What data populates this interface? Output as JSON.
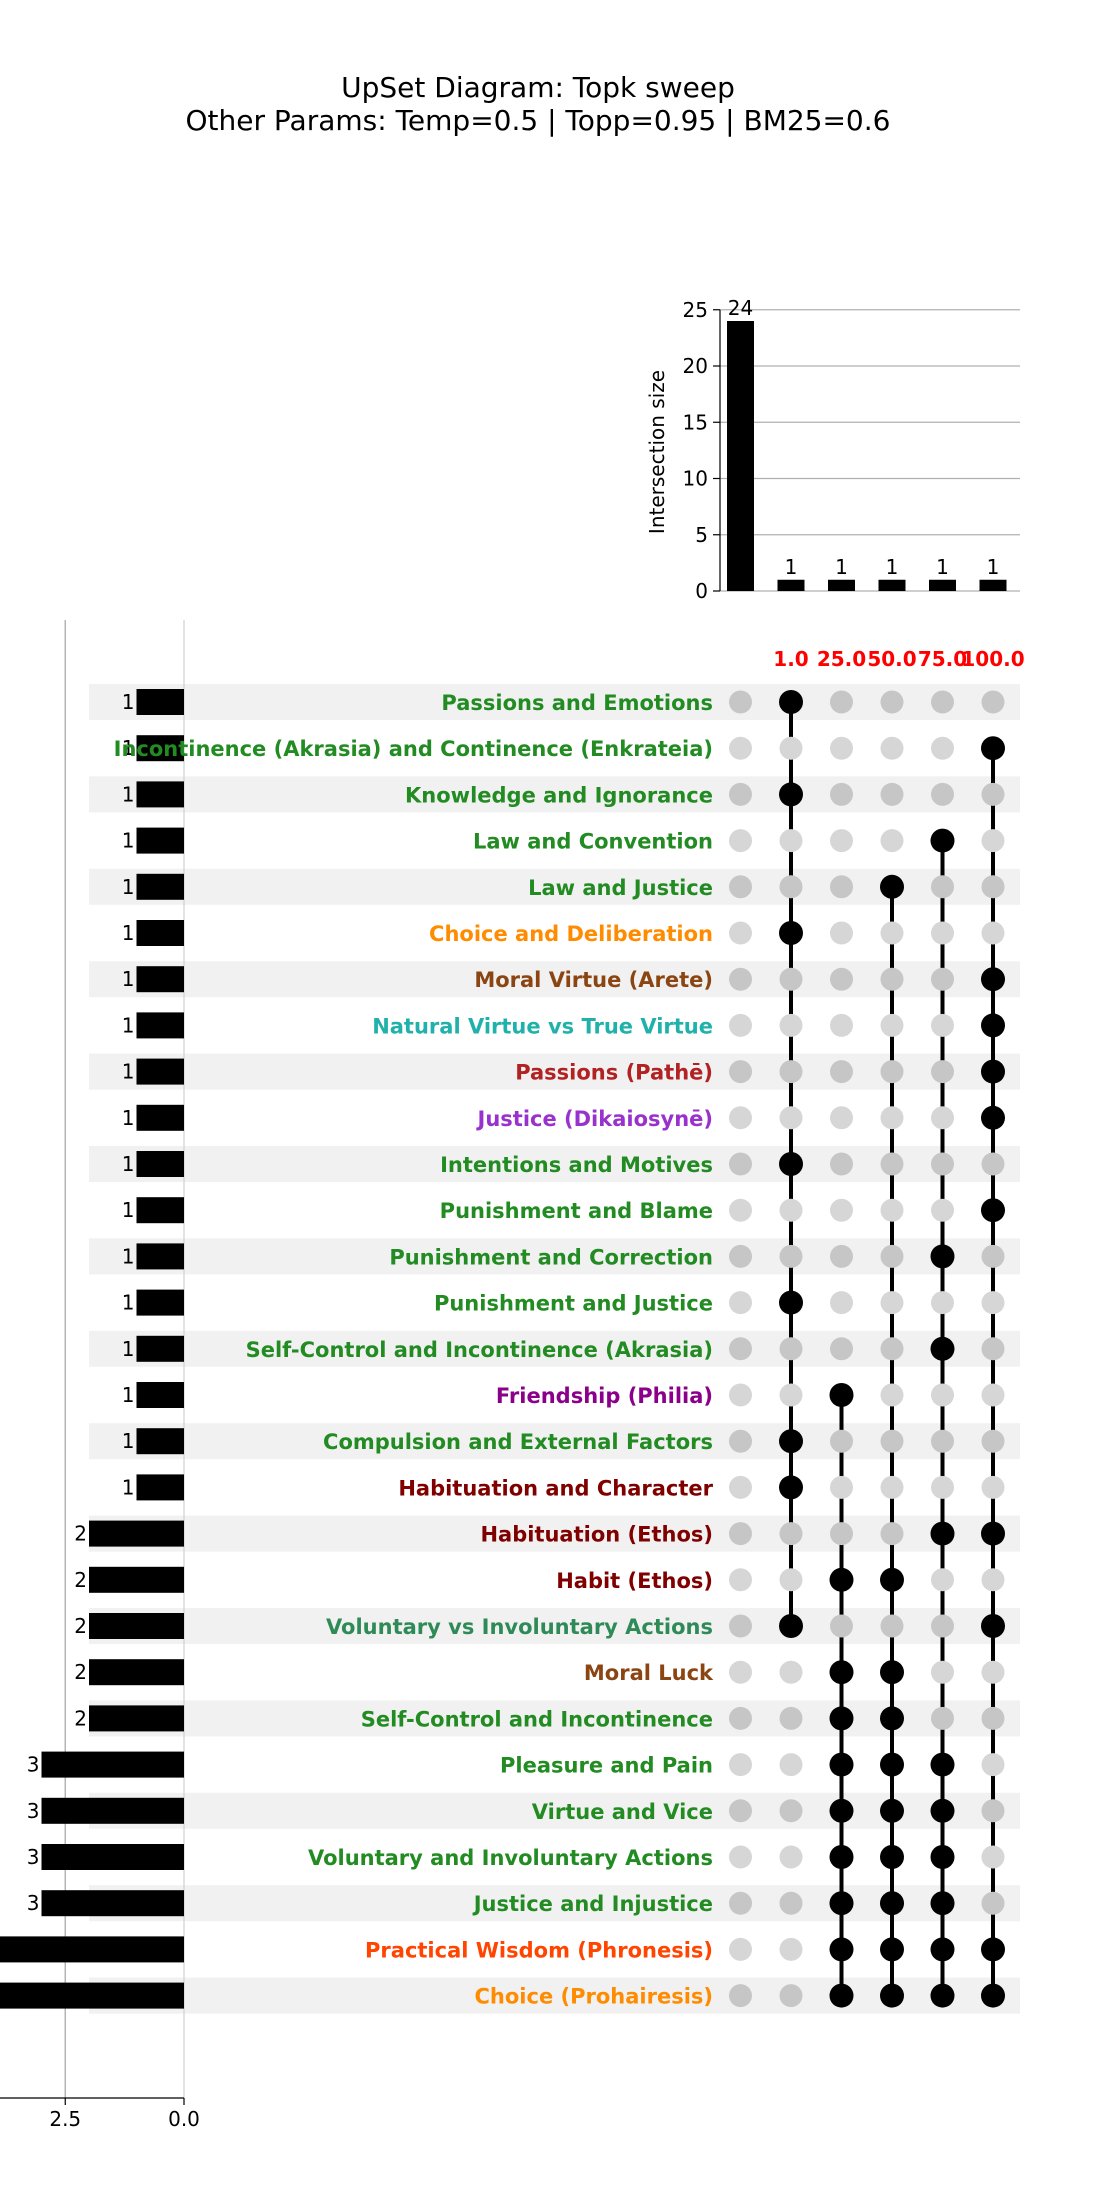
{
  "chart_data": {
    "type": "upset",
    "title_line1": "UpSet Diagram: Topk sweep",
    "title_line2": "Other Params: Temp=0.5 | Topp=0.95 | BM25=0.6",
    "intersection_ylabel": "Intersection size",
    "intersection_ylim": [
      0,
      25
    ],
    "intersection_yticks": [
      "0",
      "5",
      "10",
      "15",
      "20",
      "25"
    ],
    "set_size_xticks": [
      "2.5",
      "0.0"
    ],
    "set_size_xlim": [
      0,
      4
    ],
    "grid": true,
    "columns": [
      "1.0",
      "25.0",
      "50.0",
      "75.0",
      "100.0"
    ],
    "column_color": "#ff0000",
    "intersections": [
      {
        "size": 24,
        "members": []
      },
      {
        "size": 1,
        "members": [
          "1.0"
        ]
      },
      {
        "size": 1,
        "members": [
          "25.0"
        ]
      },
      {
        "size": 1,
        "members": [
          "50.0"
        ]
      },
      {
        "size": 1,
        "members": [
          "75.0"
        ]
      },
      {
        "size": 1,
        "members": [
          "100.0"
        ]
      }
    ],
    "rows": [
      {
        "label": "Passions and Emotions",
        "color": "#228b22",
        "size": 1,
        "dots": [
          0,
          1,
          0,
          0,
          0,
          0
        ]
      },
      {
        "label": "Incontinence (Akrasia) and Continence (Enkrateia)",
        "color": "#228b22",
        "size": 1,
        "dots": [
          0,
          0,
          0,
          0,
          0,
          1
        ]
      },
      {
        "label": "Knowledge and Ignorance",
        "color": "#228b22",
        "size": 1,
        "dots": [
          0,
          1,
          0,
          0,
          0,
          0
        ]
      },
      {
        "label": "Law and Convention",
        "color": "#228b22",
        "size": 1,
        "dots": [
          0,
          0,
          0,
          0,
          1,
          0
        ]
      },
      {
        "label": "Law and Justice",
        "color": "#228b22",
        "size": 1,
        "dots": [
          0,
          0,
          0,
          1,
          0,
          0
        ]
      },
      {
        "label": "Choice and Deliberation",
        "color": "#ff8c00",
        "size": 1,
        "dots": [
          0,
          1,
          0,
          0,
          0,
          0
        ]
      },
      {
        "label": "Moral Virtue (Arete)",
        "color": "#8b4513",
        "size": 1,
        "dots": [
          0,
          0,
          0,
          0,
          0,
          1
        ]
      },
      {
        "label": "Natural Virtue vs True Virtue",
        "color": "#20b2aa",
        "size": 1,
        "dots": [
          0,
          0,
          0,
          0,
          0,
          1
        ]
      },
      {
        "label": "Passions (Pathē)",
        "color": "#b22222",
        "size": 1,
        "dots": [
          0,
          0,
          0,
          0,
          0,
          1
        ]
      },
      {
        "label": "Justice (Dikaiosynē)",
        "color": "#9932cc",
        "size": 1,
        "dots": [
          0,
          0,
          0,
          0,
          0,
          1
        ]
      },
      {
        "label": "Intentions and Motives",
        "color": "#228b22",
        "size": 1,
        "dots": [
          0,
          1,
          0,
          0,
          0,
          0
        ]
      },
      {
        "label": "Punishment and Blame",
        "color": "#228b22",
        "size": 1,
        "dots": [
          0,
          0,
          0,
          0,
          0,
          1
        ]
      },
      {
        "label": "Punishment and Correction",
        "color": "#228b22",
        "size": 1,
        "dots": [
          0,
          0,
          0,
          0,
          1,
          0
        ]
      },
      {
        "label": "Punishment and Justice",
        "color": "#228b22",
        "size": 1,
        "dots": [
          0,
          1,
          0,
          0,
          0,
          0
        ]
      },
      {
        "label": "Self-Control and Incontinence (Akrasia)",
        "color": "#228b22",
        "size": 1,
        "dots": [
          0,
          0,
          0,
          0,
          1,
          0
        ]
      },
      {
        "label": "Friendship (Philia)",
        "color": "#8b008b",
        "size": 1,
        "dots": [
          0,
          0,
          1,
          0,
          0,
          0
        ]
      },
      {
        "label": "Compulsion and External Factors",
        "color": "#228b22",
        "size": 1,
        "dots": [
          0,
          1,
          0,
          0,
          0,
          0
        ]
      },
      {
        "label": "Habituation and Character",
        "color": "#800000",
        "size": 1,
        "dots": [
          0,
          1,
          0,
          0,
          0,
          0
        ]
      },
      {
        "label": "Habituation (Ethos)",
        "color": "#800000",
        "size": 2,
        "dots": [
          0,
          0,
          0,
          0,
          1,
          1
        ]
      },
      {
        "label": "Habit (Ethos)",
        "color": "#800000",
        "size": 2,
        "dots": [
          0,
          0,
          1,
          1,
          0,
          0
        ]
      },
      {
        "label": "Voluntary vs Involuntary Actions",
        "color": "#2e8b57",
        "size": 2,
        "dots": [
          0,
          1,
          0,
          0,
          0,
          1
        ]
      },
      {
        "label": "Moral Luck",
        "color": "#8b4513",
        "size": 2,
        "dots": [
          0,
          0,
          1,
          1,
          0,
          0
        ]
      },
      {
        "label": "Self-Control and Incontinence",
        "color": "#228b22",
        "size": 2,
        "dots": [
          0,
          0,
          1,
          1,
          0,
          0
        ]
      },
      {
        "label": "Pleasure and Pain",
        "color": "#228b22",
        "size": 3,
        "dots": [
          0,
          0,
          1,
          1,
          1,
          0
        ]
      },
      {
        "label": "Virtue and Vice",
        "color": "#228b22",
        "size": 3,
        "dots": [
          0,
          0,
          1,
          1,
          1,
          0
        ]
      },
      {
        "label": "Voluntary and Involuntary Actions",
        "color": "#228b22",
        "size": 3,
        "dots": [
          0,
          0,
          1,
          1,
          1,
          0
        ]
      },
      {
        "label": "Justice and Injustice",
        "color": "#228b22",
        "size": 3,
        "dots": [
          0,
          0,
          1,
          1,
          1,
          0
        ]
      },
      {
        "label": "Practical Wisdom (Phronesis)",
        "color": "#ff4500",
        "size": 4,
        "dots": [
          0,
          0,
          1,
          1,
          1,
          1
        ]
      },
      {
        "label": "Choice (Prohairesis)",
        "color": "#ff8c00",
        "size": 4,
        "dots": [
          0,
          0,
          1,
          1,
          1,
          1
        ]
      }
    ]
  }
}
